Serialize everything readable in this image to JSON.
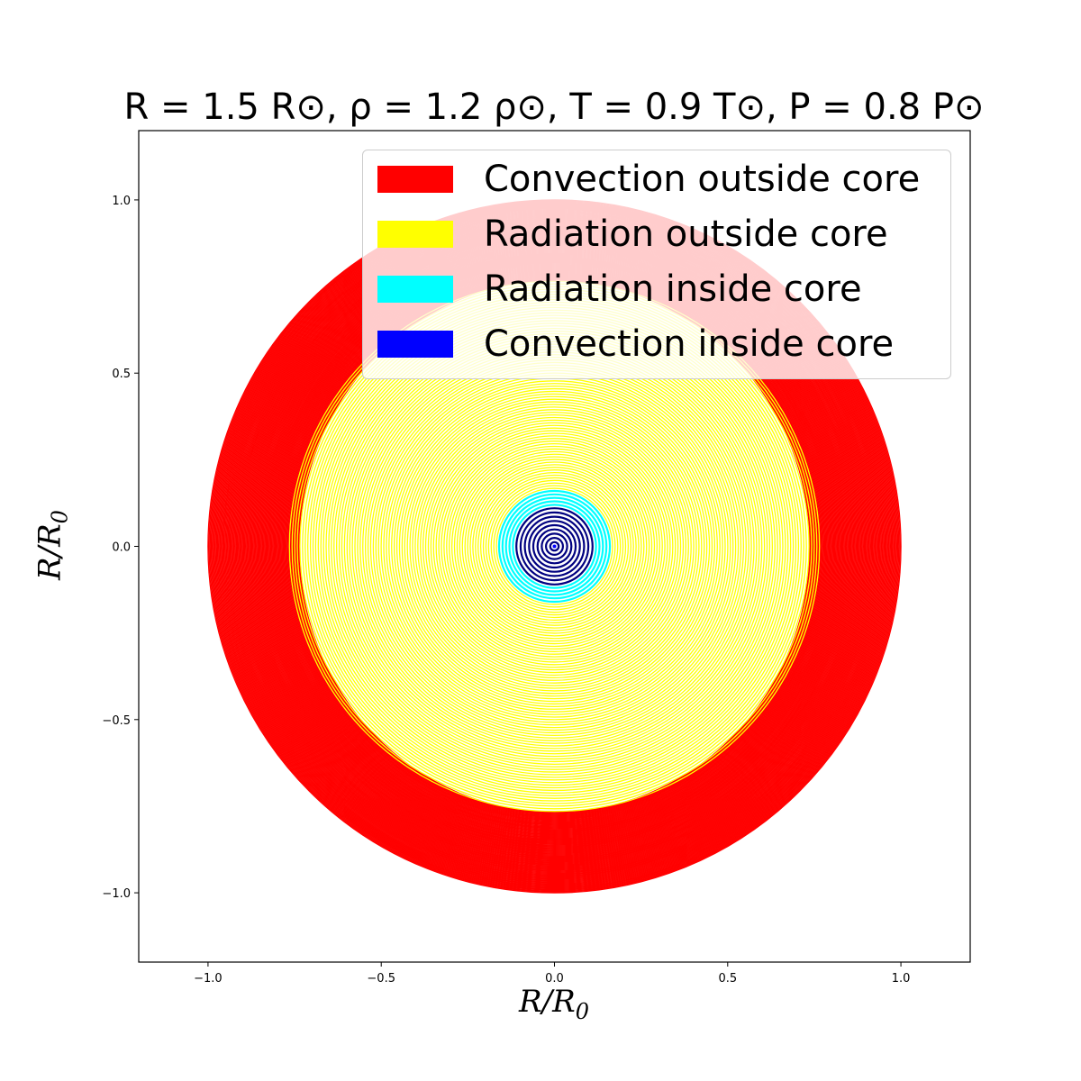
{
  "chart_data": {
    "type": "scatter",
    "title": "R = 1.5 R⊙, ρ = 1.2 ρ⊙, T = 0.9 T⊙, P = 0.8 P⊙",
    "xlabel": "R/R0",
    "ylabel": "R/R0",
    "xlim": [
      -1.2,
      1.2
    ],
    "ylim": [
      -1.2,
      1.2
    ],
    "grid": false,
    "legend_position": "top-right",
    "xticks": [
      -1.0,
      -0.5,
      0.0,
      0.5,
      1.0
    ],
    "yticks": [
      -1.0,
      -0.5,
      0.0,
      0.5,
      1.0
    ],
    "xtick_labels": [
      "−1.0",
      "−0.5",
      "0.0",
      "0.5",
      "1.0"
    ],
    "ytick_labels": [
      "−1.0",
      "−0.5",
      "0.0",
      "0.5",
      "1.0"
    ],
    "series": [
      {
        "name": "Convection outside core",
        "color": "#ff0000",
        "radius_range": [
          0.765,
          1.0
        ]
      },
      {
        "name": "Radiation outside core",
        "color": "#ffff00",
        "radius_range": [
          0.16,
          0.765
        ]
      },
      {
        "name": "Radiation inside core",
        "color": "#00ffff",
        "radius_range": [
          0.11,
          0.16
        ]
      },
      {
        "name": "Convection inside core",
        "color": "#0000ff",
        "radius_range": [
          0.0,
          0.11
        ]
      }
    ],
    "legend": [
      {
        "label": "Convection outside core",
        "color": "#ff0000"
      },
      {
        "label": "Radiation outside core",
        "color": "#ffff00"
      },
      {
        "label": "Radiation inside core",
        "color": "#00ffff"
      },
      {
        "label": "Convection inside core",
        "color": "#0000ff"
      }
    ]
  }
}
